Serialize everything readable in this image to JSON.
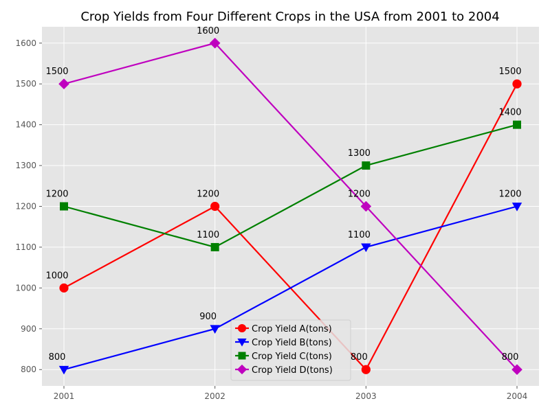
{
  "chart_data": {
    "type": "line",
    "title": "Crop Yields from Four Different Crops in the USA from 2001 to 2004",
    "xlabel": "",
    "ylabel": "",
    "categories": [
      "2001",
      "2002",
      "2003",
      "2004"
    ],
    "ylim": [
      760,
      1640
    ],
    "yticks": [
      800,
      900,
      1000,
      1100,
      1200,
      1300,
      1400,
      1500,
      1600
    ],
    "grid": true,
    "legend_position": "bottom-center",
    "series": [
      {
        "name": "Crop Yield A(tons)",
        "values": [
          1000,
          1200,
          800,
          1500
        ],
        "color": "#ff0000",
        "marker": "circle"
      },
      {
        "name": "Crop Yield B(tons)",
        "values": [
          800,
          900,
          1100,
          1200
        ],
        "color": "#0000ff",
        "marker": "triangle-down"
      },
      {
        "name": "Crop Yield C(tons)",
        "values": [
          1200,
          1100,
          1300,
          1400
        ],
        "color": "#008000",
        "marker": "square"
      },
      {
        "name": "Crop Yield D(tons)",
        "values": [
          1500,
          1600,
          1200,
          800
        ],
        "color": "#bf00bf",
        "marker": "diamond"
      }
    ]
  }
}
